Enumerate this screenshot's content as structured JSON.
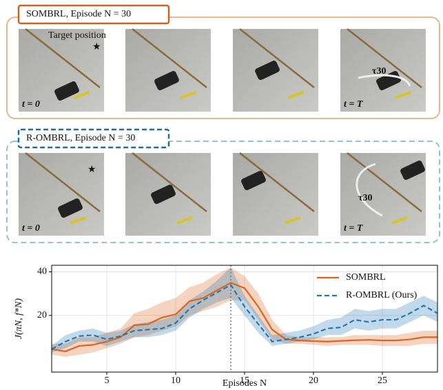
{
  "panels": [
    {
      "title": "SOMBRL, Episode N = 30",
      "color": "#c8641e",
      "start_label": "t = 0",
      "end_label": "t = T",
      "target_label": "Target position",
      "trajectory_label": "τ30"
    },
    {
      "title": "R-OMBRL, Episode N = 30",
      "color": "#1f6d96",
      "start_label": "t = 0",
      "end_label": "t = T",
      "trajectory_label": "τ30"
    }
  ],
  "chart_data": {
    "type": "line",
    "x_label": "Episodes N",
    "y_label": "J(πN, f*N)",
    "x": [
      1,
      2,
      3,
      4,
      5,
      6,
      7,
      8,
      9,
      10,
      11,
      12,
      13,
      14,
      15,
      16,
      17,
      18,
      19,
      20,
      21,
      22,
      23,
      24,
      25,
      26,
      27,
      28,
      29
    ],
    "xlim": [
      1,
      29
    ],
    "xticks": [
      5,
      10,
      15,
      20,
      25
    ],
    "ylim": [
      -6,
      43
    ],
    "yticks": [
      20,
      40
    ],
    "grid": true,
    "vline": 14,
    "legend": "upper right",
    "series": [
      {
        "name": "SOMBRL",
        "color": "#d9651e",
        "dash": false,
        "values": [
          4.5,
          3.5,
          6,
          6.5,
          8,
          10,
          15.5,
          16,
          19,
          20.5,
          26.5,
          28,
          31.5,
          35,
          32.5,
          24,
          13.5,
          9,
          8.5,
          8.2,
          8,
          8.3,
          8.6,
          8.8,
          8.5,
          8.5,
          9,
          10,
          10
        ],
        "band_upper": [
          7,
          7,
          10,
          10,
          12,
          14,
          21,
          23,
          26,
          28,
          33,
          35,
          39,
          42,
          38,
          30,
          18,
          11,
          10,
          10,
          10,
          10,
          11,
          11,
          11,
          11,
          12,
          13,
          13
        ],
        "band_lower": [
          2,
          1,
          2,
          3,
          5,
          7,
          10,
          11,
          13,
          15,
          20,
          22,
          24,
          27,
          27,
          18,
          9,
          7,
          7,
          6.5,
          6,
          6.5,
          6.5,
          6.5,
          6,
          6,
          6,
          7,
          7
        ]
      },
      {
        "name": "R-OMBRL (Ours)",
        "color": "#1f77b4",
        "dash": true,
        "values": [
          4.5,
          8,
          10.5,
          11,
          9,
          10.5,
          13,
          13.5,
          14,
          16.5,
          23,
          27,
          30.5,
          34,
          24,
          16,
          8,
          9,
          10,
          11.5,
          14,
          14.5,
          18,
          17,
          18,
          18,
          21,
          24.5,
          21
        ],
        "band_upper": [
          6,
          11,
          13,
          14,
          12,
          13,
          16,
          17,
          18,
          20,
          27,
          31,
          36,
          42,
          29,
          20,
          11,
          12,
          13,
          15,
          18,
          19,
          23,
          22,
          23,
          23,
          26,
          29,
          26
        ],
        "band_lower": [
          3,
          5,
          8,
          8,
          6,
          8,
          10,
          10,
          11,
          13,
          19,
          23,
          26,
          28,
          20,
          12,
          6,
          7,
          8,
          9,
          11,
          11,
          14,
          13,
          14,
          14,
          17,
          20,
          17
        ]
      }
    ]
  }
}
